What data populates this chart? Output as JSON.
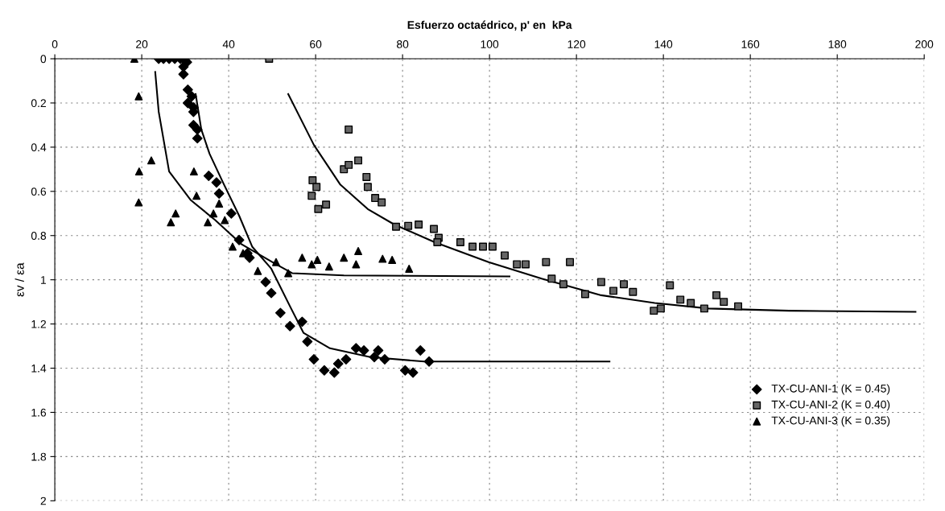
{
  "chart_data": {
    "type": "scatter",
    "xlabel": "Esfuerzo octaédrico, p' en  kPa",
    "ylabel": "εv / εa",
    "xlim": [
      0,
      200
    ],
    "xticks": [
      0,
      20,
      40,
      60,
      80,
      100,
      120,
      140,
      160,
      180,
      200
    ],
    "ylim": [
      2,
      0
    ],
    "yticks": [
      0,
      0.2,
      0.4,
      0.6,
      0.8,
      {
        "value": 1,
        "label": "1"
      },
      1.2,
      1.4,
      1.6,
      1.8,
      {
        "value": 2,
        "label": "2"
      }
    ],
    "grid": true,
    "legend": "lower right",
    "series": [
      {
        "name": "TX-CU-ANI-1 (K = 0.45)",
        "color": "#000000",
        "marker": "diamond",
        "x": [
          23.9,
          25,
          26.3,
          27.6,
          28.9,
          29.6,
          29.6,
          30.4,
          30.6,
          31.5,
          30.6,
          31.9,
          31.9,
          31.9,
          32.8,
          32.8,
          35.4,
          37.2,
          37.8,
          40.6,
          42.4,
          44.3,
          44.8,
          48.5,
          49.8,
          51.9,
          54.1,
          56.9,
          58.1,
          59.6,
          62.0,
          64.3,
          65.2,
          67.0,
          69.3,
          71.1,
          73.5,
          74.4,
          75.9,
          80.6,
          82.4,
          84.1,
          86.1
        ],
        "values": [
          0,
          0,
          0,
          0,
          0,
          0.036,
          0.07,
          0.015,
          0.14,
          0.17,
          0.2,
          0.22,
          0.24,
          0.3,
          0.32,
          0.36,
          0.53,
          0.56,
          0.61,
          0.7,
          0.82,
          0.88,
          0.9,
          1.01,
          1.06,
          1.15,
          1.21,
          1.19,
          1.28,
          1.36,
          1.41,
          1.42,
          1.38,
          1.36,
          1.31,
          1.32,
          1.35,
          1.32,
          1.36,
          1.41,
          1.42,
          1.32,
          1.37
        ]
      },
      {
        "name": "TX-CU-ANI-2 (K = 0.40)",
        "color": "#000000",
        "marker": "square",
        "x": [
          49.3,
          67.6,
          66.5,
          67.6,
          69.8,
          59.3,
          60.2,
          59.1,
          60.6,
          62.4,
          71.7,
          72.0,
          73.7,
          75.2,
          78.5,
          81.3,
          83.7,
          87.2,
          88.3,
          88.0,
          93.3,
          96.1,
          98.5,
          100.7,
          103.5,
          106.3,
          108.3,
          113,
          118.5,
          114.3,
          117,
          122,
          125.7,
          128.5,
          130.9,
          133,
          137.8,
          139.4,
          141.5,
          143.9,
          146.3,
          149.4,
          152.2,
          153.9,
          157.2
        ],
        "values": [
          0,
          0.32,
          0.5,
          0.48,
          0.46,
          0.55,
          0.58,
          0.62,
          0.68,
          0.66,
          0.535,
          0.58,
          0.63,
          0.65,
          0.76,
          0.756,
          0.75,
          0.77,
          0.81,
          0.83,
          0.83,
          0.85,
          0.85,
          0.85,
          0.89,
          0.93,
          0.93,
          0.92,
          0.92,
          0.995,
          1.02,
          1.065,
          1.01,
          1.05,
          1.02,
          1.055,
          1.14,
          1.13,
          1.025,
          1.09,
          1.105,
          1.13,
          1.07,
          1.1,
          1.12
        ]
      },
      {
        "name": "TX-CU-ANI-3 (K = 0.35)",
        "color": "#000000",
        "marker": "triangle",
        "x": [
          18.3,
          19.3,
          22.2,
          19.4,
          19.3,
          27.8,
          26.7,
          32.0,
          32.6,
          36.5,
          35.2,
          37.8,
          39.1,
          40.9,
          43.3,
          56.9,
          46.7,
          50.9,
          53.7,
          59.1,
          60.4,
          63.1,
          66.5,
          69.8,
          69.3,
          75.4,
          77.6,
          81.5
        ],
        "values": [
          0,
          0.17,
          0.46,
          0.51,
          0.65,
          0.7,
          0.74,
          0.51,
          0.62,
          0.7,
          0.74,
          0.655,
          0.73,
          0.85,
          0.88,
          0.9,
          0.96,
          0.92,
          0.97,
          0.93,
          0.91,
          0.94,
          0.9,
          0.87,
          0.93,
          0.905,
          0.91,
          0.95
        ]
      },
      {
        "type": "line",
        "color": "#000000",
        "marker": "none",
        "x": [
          32.4,
          33.7,
          35.6,
          38.7,
          42.4,
          45.4,
          49.8,
          54.1,
          57.2,
          63.3,
          72.6,
          85,
          127.6
        ],
        "values": [
          0.16,
          0.32,
          0.43,
          0.56,
          0.71,
          0.85,
          0.95,
          1.12,
          1.24,
          1.31,
          1.35,
          1.37,
          1.37
        ]
      },
      {
        "type": "line",
        "color": "#000000",
        "marker": "none",
        "x": [
          53.7,
          59.6,
          65.7,
          72,
          78.1,
          87.4,
          99.8,
          112,
          125.7,
          138,
          150.4,
          168.9,
          198
        ],
        "values": [
          0.16,
          0.39,
          0.57,
          0.68,
          0.75,
          0.83,
          0.92,
          0.995,
          1.07,
          1.105,
          1.13,
          1.14,
          1.145
        ]
      },
      {
        "type": "line",
        "color": "#000000",
        "marker": "none",
        "x": [
          23.1,
          23.9,
          26.3,
          31.3,
          36.9,
          43,
          50.9,
          54.6,
          66.5,
          104.6
        ],
        "values": [
          0.06,
          0.24,
          0.51,
          0.64,
          0.73,
          0.84,
          0.93,
          0.97,
          0.98,
          0.985
        ]
      }
    ]
  }
}
